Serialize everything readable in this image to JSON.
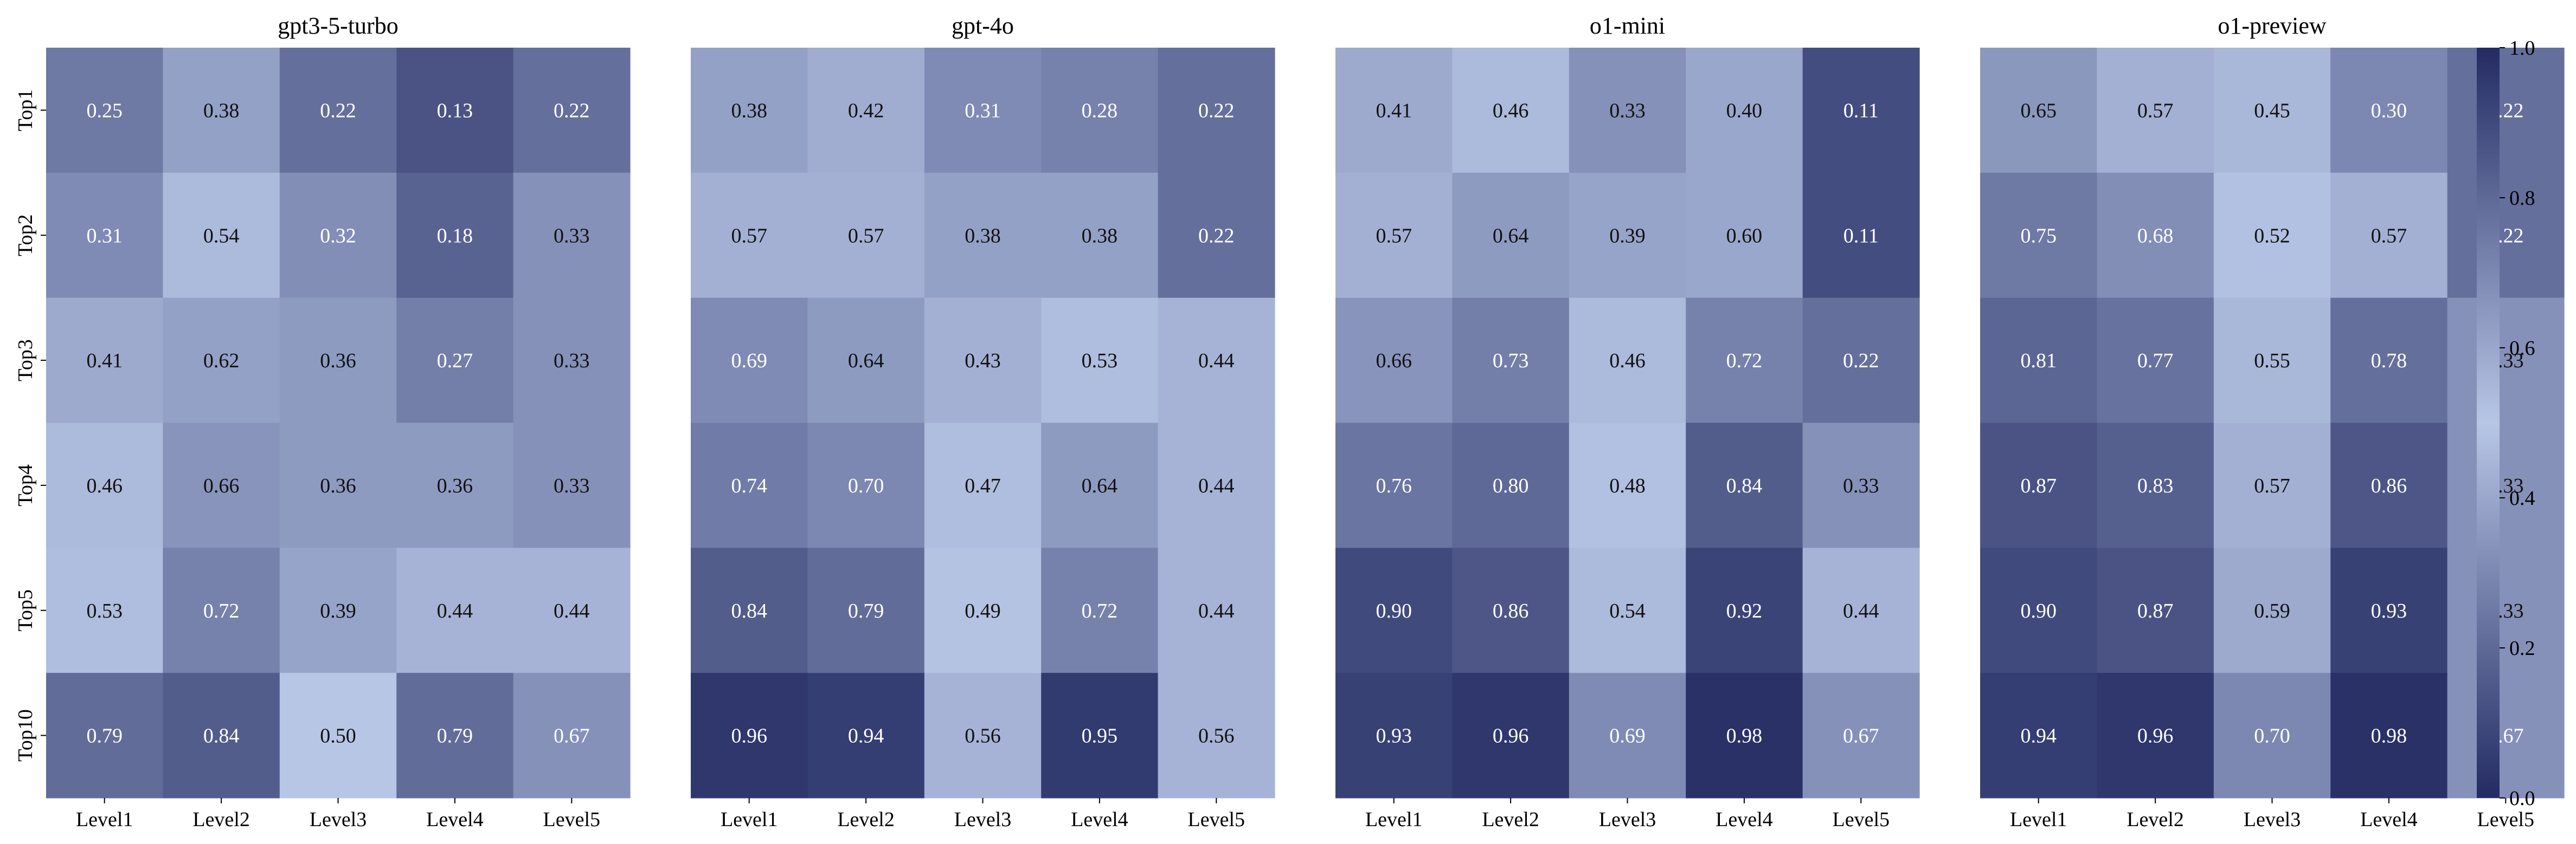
{
  "chart_data": {
    "type": "heatmap",
    "rows": [
      "Top1",
      "Top2",
      "Top3",
      "Top4",
      "Top5",
      "Top10"
    ],
    "columns": [
      "Level1",
      "Level2",
      "Level3",
      "Level4",
      "Level5"
    ],
    "panels": [
      {
        "title": "gpt3-5-turbo",
        "values": [
          [
            0.25,
            0.38,
            0.22,
            0.13,
            0.22
          ],
          [
            0.31,
            0.54,
            0.32,
            0.18,
            0.33
          ],
          [
            0.41,
            0.62,
            0.36,
            0.27,
            0.33
          ],
          [
            0.46,
            0.66,
            0.36,
            0.36,
            0.33
          ],
          [
            0.53,
            0.72,
            0.39,
            0.44,
            0.44
          ],
          [
            0.79,
            0.84,
            0.5,
            0.79,
            0.67
          ]
        ]
      },
      {
        "title": "gpt-4o",
        "values": [
          [
            0.38,
            0.42,
            0.31,
            0.28,
            0.22
          ],
          [
            0.57,
            0.57,
            0.38,
            0.38,
            0.22
          ],
          [
            0.69,
            0.64,
            0.43,
            0.53,
            0.44
          ],
          [
            0.74,
            0.7,
            0.47,
            0.64,
            0.44
          ],
          [
            0.84,
            0.79,
            0.49,
            0.72,
            0.44
          ],
          [
            0.96,
            0.94,
            0.56,
            0.95,
            0.56
          ]
        ]
      },
      {
        "title": "o1-mini",
        "values": [
          [
            0.41,
            0.46,
            0.33,
            0.4,
            0.11
          ],
          [
            0.57,
            0.64,
            0.39,
            0.6,
            0.11
          ],
          [
            0.66,
            0.73,
            0.46,
            0.72,
            0.22
          ],
          [
            0.76,
            0.8,
            0.48,
            0.84,
            0.33
          ],
          [
            0.9,
            0.86,
            0.54,
            0.92,
            0.44
          ],
          [
            0.93,
            0.96,
            0.69,
            0.98,
            0.67
          ]
        ]
      },
      {
        "title": "o1-preview",
        "values": [
          [
            0.65,
            0.57,
            0.45,
            0.3,
            0.22
          ],
          [
            0.75,
            0.68,
            0.52,
            0.57,
            0.22
          ],
          [
            0.81,
            0.77,
            0.55,
            0.78,
            0.33
          ],
          [
            0.87,
            0.83,
            0.57,
            0.86,
            0.33
          ],
          [
            0.9,
            0.87,
            0.59,
            0.93,
            0.33
          ],
          [
            0.94,
            0.96,
            0.7,
            0.98,
            0.67
          ]
        ]
      }
    ],
    "colorbar": {
      "min": 0.0,
      "max": 1.0,
      "ticks": [
        "0.0",
        "0.2",
        "0.4",
        "0.6",
        "0.8",
        "1.0"
      ]
    },
    "colormap": {
      "type": "diverging",
      "colors": [
        "#232B62",
        "#B8C6E6",
        "#232B62"
      ]
    },
    "label_colors": {
      "dark": "#ffffff",
      "light": "#111111"
    }
  }
}
